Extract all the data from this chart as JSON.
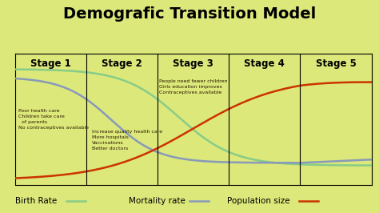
{
  "title": "Demografic Transition Model",
  "background_color": "#dce87a",
  "plot_bg_color": "#dce87a",
  "stage_labels": [
    "Stage 1",
    "Stage 2",
    "Stage 3",
    "Stage 4",
    "Stage 5"
  ],
  "stage_boundaries": [
    0.2,
    0.4,
    0.6,
    0.8
  ],
  "birth_rate_color": "#88cc88",
  "mortality_rate_color": "#8899bb",
  "population_size_color": "#cc3300",
  "annotation_stage1": "Poor health care\nChildren take care\n  of parents\nNo contraceptives available",
  "annotation_stage2": "Increase quality health care\nMore hospitals\nVaccinations\nBetter doctors",
  "annotation_stage3": "People need fewer children\nGirls education improves\nContraceptives available",
  "xlabel_birth": "Birth Rate",
  "xlabel_mortality": "Mortality rate",
  "xlabel_population": "Population size",
  "title_fontsize": 14,
  "stage_fontsize": 8.5,
  "annotation_fontsize": 4.5,
  "legend_fontsize": 7.5
}
